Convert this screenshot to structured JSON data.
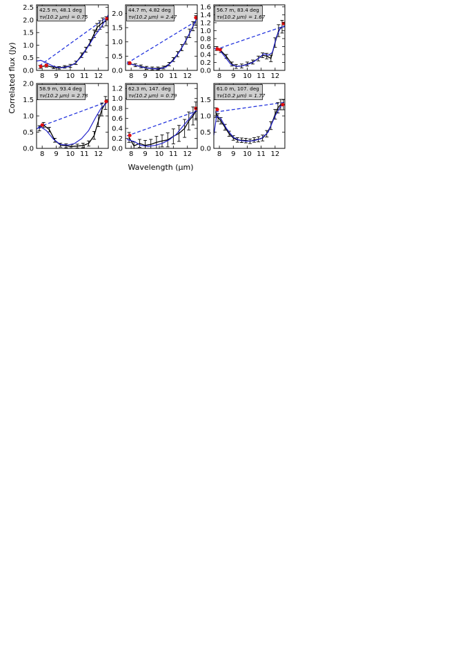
{
  "figure": {
    "ylabel": "Correlated flux (Jy)",
    "xlabel": "Wavelength (μm)",
    "colors": {
      "model": "#2222cc",
      "continuum": "#2233dd",
      "data": "#000000",
      "marker": "#e01010",
      "box": "#cfcfcf"
    }
  },
  "chart_data": [
    {
      "type": "line",
      "title": "42.5 m, 48.1 deg",
      "subtitle": "τν(10.2 μm) = 0.75",
      "xlim": [
        7.6,
        12.7
      ],
      "ylim": [
        0,
        2.6
      ],
      "xticks": [
        8,
        9,
        10,
        11,
        12
      ],
      "yticks": [
        0.0,
        0.5,
        1.0,
        1.5,
        2.0,
        2.5
      ],
      "ytick_labels": [
        "0.0",
        "0.5",
        "1.0",
        "1.5",
        "2.0",
        "2.5"
      ],
      "dashed_line": [
        [
          7.8,
          0.18
        ],
        [
          12.7,
          2.15
        ]
      ],
      "model_curve": [
        [
          7.6,
          0.37
        ],
        [
          7.9,
          0.4
        ],
        [
          8.3,
          0.3
        ],
        [
          8.8,
          0.16
        ],
        [
          9.3,
          0.1
        ],
        [
          9.8,
          0.14
        ],
        [
          10.3,
          0.26
        ],
        [
          10.8,
          0.55
        ],
        [
          11.3,
          0.98
        ],
        [
          11.8,
          1.42
        ],
        [
          12.2,
          1.72
        ],
        [
          12.7,
          2.2
        ]
      ],
      "data_points": [
        [
          7.85,
          0.14,
          0.06
        ],
        [
          8.3,
          0.19,
          0.06
        ],
        [
          8.8,
          0.12,
          0.05
        ],
        [
          9.2,
          0.1,
          0.05
        ],
        [
          9.6,
          0.14,
          0.05
        ],
        [
          10.0,
          0.18,
          0.06
        ],
        [
          10.4,
          0.3,
          0.07
        ],
        [
          10.8,
          0.6,
          0.09
        ],
        [
          11.1,
          0.82,
          0.1
        ],
        [
          11.4,
          1.1,
          0.12
        ],
        [
          11.7,
          1.45,
          0.15
        ],
        [
          11.9,
          1.7,
          0.16
        ],
        [
          12.1,
          1.8,
          0.17
        ],
        [
          12.3,
          1.9,
          0.18
        ],
        [
          12.55,
          1.95,
          0.18
        ]
      ],
      "red_points": [
        [
          7.9,
          0.16
        ],
        [
          8.3,
          0.2
        ],
        [
          12.6,
          2.05
        ]
      ]
    },
    {
      "type": "line",
      "title": "44.7 m, 4.82 deg",
      "subtitle": "τν(10.2 μm) = 2.47",
      "xlim": [
        7.6,
        12.7
      ],
      "ylim": [
        0,
        2.3
      ],
      "xticks": [
        8,
        9,
        10,
        11,
        12
      ],
      "yticks": [
        0.0,
        0.5,
        1.0,
        1.5,
        2.0
      ],
      "ytick_labels": [
        "0.0",
        "0.5",
        "1.0",
        "1.5",
        "2.0"
      ],
      "dashed_line": [
        [
          7.7,
          0.25
        ],
        [
          12.7,
          1.75
        ]
      ],
      "model_curve": [
        [
          7.7,
          0.25
        ],
        [
          8.3,
          0.18
        ],
        [
          8.9,
          0.1
        ],
        [
          9.5,
          0.06
        ],
        [
          10.0,
          0.05
        ],
        [
          10.5,
          0.12
        ],
        [
          11.0,
          0.35
        ],
        [
          11.5,
          0.7
        ],
        [
          12.0,
          1.15
        ],
        [
          12.4,
          1.55
        ],
        [
          12.7,
          1.85
        ]
      ],
      "data_points": [
        [
          7.85,
          0.25,
          0.05
        ],
        [
          8.3,
          0.18,
          0.05
        ],
        [
          8.7,
          0.14,
          0.05
        ],
        [
          9.1,
          0.09,
          0.05
        ],
        [
          9.5,
          0.07,
          0.05
        ],
        [
          9.9,
          0.07,
          0.05
        ],
        [
          10.3,
          0.1,
          0.05
        ],
        [
          10.7,
          0.22,
          0.06
        ],
        [
          11.0,
          0.38,
          0.07
        ],
        [
          11.3,
          0.57,
          0.09
        ],
        [
          11.6,
          0.8,
          0.11
        ],
        [
          11.9,
          1.05,
          0.13
        ],
        [
          12.15,
          1.3,
          0.15
        ],
        [
          12.4,
          1.55,
          0.16
        ],
        [
          12.6,
          1.75,
          0.17
        ]
      ],
      "red_points": [
        [
          7.9,
          0.26
        ],
        [
          12.6,
          1.85
        ]
      ]
    },
    {
      "type": "line",
      "title": "56.7 m, 83.4 deg",
      "subtitle": "τν(10.2 μm) = 1.67",
      "xlim": [
        7.6,
        12.7
      ],
      "ylim": [
        0,
        1.65
      ],
      "xticks": [
        8,
        9,
        10,
        11,
        12
      ],
      "yticks": [
        0.0,
        0.2,
        0.4,
        0.6,
        0.8,
        1.0,
        1.2,
        1.4,
        1.6
      ],
      "ytick_labels": [
        "0.0",
        "0.2",
        "0.4",
        "0.6",
        "0.8",
        "1.0",
        "1.2",
        "1.4",
        "1.6"
      ],
      "dashed_line": [
        [
          7.7,
          0.52
        ],
        [
          12.7,
          1.12
        ]
      ],
      "model_curve": [
        [
          7.6,
          0.56
        ],
        [
          8.0,
          0.52
        ],
        [
          8.4,
          0.34
        ],
        [
          8.8,
          0.16
        ],
        [
          9.2,
          0.1
        ],
        [
          9.6,
          0.11
        ],
        [
          10.0,
          0.15
        ],
        [
          10.4,
          0.2
        ],
        [
          10.8,
          0.3
        ],
        [
          11.2,
          0.42
        ],
        [
          11.5,
          0.38
        ],
        [
          11.8,
          0.45
        ],
        [
          12.1,
          0.85
        ],
        [
          12.4,
          1.08
        ],
        [
          12.7,
          1.1
        ]
      ],
      "data_points": [
        [
          7.8,
          0.55,
          0.05
        ],
        [
          8.1,
          0.5,
          0.05
        ],
        [
          8.5,
          0.35,
          0.05
        ],
        [
          8.9,
          0.16,
          0.05
        ],
        [
          9.2,
          0.1,
          0.05
        ],
        [
          9.6,
          0.11,
          0.05
        ],
        [
          10.0,
          0.16,
          0.05
        ],
        [
          10.4,
          0.21,
          0.05
        ],
        [
          10.8,
          0.3,
          0.06
        ],
        [
          11.1,
          0.38,
          0.06
        ],
        [
          11.4,
          0.36,
          0.07
        ],
        [
          11.7,
          0.3,
          0.08
        ],
        [
          12.0,
          0.7,
          0.12
        ],
        [
          12.25,
          1.0,
          0.15
        ],
        [
          12.5,
          1.1,
          0.16
        ]
      ],
      "red_points": [
        [
          7.85,
          0.54
        ],
        [
          8.05,
          0.52
        ],
        [
          12.6,
          1.18
        ]
      ]
    },
    {
      "type": "line",
      "title": "58.9 m, 93.4 deg",
      "subtitle": "τν(10.2 μm) = 2.78",
      "xlim": [
        7.6,
        12.7
      ],
      "ylim": [
        0,
        2.0
      ],
      "xticks": [
        8,
        9,
        10,
        11,
        12
      ],
      "yticks": [
        0.0,
        0.5,
        1.0,
        1.5,
        2.0
      ],
      "ytick_labels": [
        "0.0",
        "0.5",
        "1.0",
        "1.5",
        "2.0"
      ],
      "dashed_line": [
        [
          7.7,
          0.65
        ],
        [
          12.7,
          1.45
        ]
      ],
      "model_curve": [
        [
          7.6,
          0.6
        ],
        [
          7.9,
          0.66
        ],
        [
          8.3,
          0.55
        ],
        [
          8.8,
          0.28
        ],
        [
          9.3,
          0.12
        ],
        [
          9.8,
          0.1
        ],
        [
          10.3,
          0.15
        ],
        [
          10.8,
          0.3
        ],
        [
          11.3,
          0.55
        ],
        [
          11.8,
          0.95
        ],
        [
          12.2,
          1.25
        ],
        [
          12.7,
          1.45
        ]
      ],
      "data_points": [
        [
          7.8,
          0.62,
          0.08
        ],
        [
          8.1,
          0.72,
          0.08
        ],
        [
          8.5,
          0.58,
          0.07
        ],
        [
          8.9,
          0.25,
          0.06
        ],
        [
          9.3,
          0.1,
          0.06
        ],
        [
          9.7,
          0.08,
          0.06
        ],
        [
          10.1,
          0.06,
          0.06
        ],
        [
          10.5,
          0.07,
          0.06
        ],
        [
          10.9,
          0.09,
          0.07
        ],
        [
          11.3,
          0.15,
          0.08
        ],
        [
          11.7,
          0.4,
          0.12
        ],
        [
          12.0,
          0.85,
          0.18
        ],
        [
          12.25,
          1.2,
          0.2
        ],
        [
          12.5,
          1.4,
          0.2
        ]
      ],
      "red_points": [
        [
          8.0,
          0.72
        ],
        [
          12.55,
          1.45
        ]
      ]
    },
    {
      "type": "line",
      "title": "62.3 m, 147. deg",
      "subtitle": "τν(10.2 μm) = 0.79",
      "xlim": [
        7.6,
        12.7
      ],
      "ylim": [
        0,
        1.3
      ],
      "xticks": [
        8,
        9,
        10,
        11,
        12
      ],
      "yticks": [
        0.0,
        0.2,
        0.4,
        0.6,
        0.8,
        1.0,
        1.2
      ],
      "ytick_labels": [
        "0.0",
        "0.2",
        "0.4",
        "0.6",
        "0.8",
        "1.0",
        "1.2"
      ],
      "dashed_line": [
        [
          7.7,
          0.25
        ],
        [
          12.7,
          0.75
        ]
      ],
      "model_curve": [
        [
          7.7,
          0.18
        ],
        [
          8.2,
          0.14
        ],
        [
          8.7,
          0.06
        ],
        [
          9.2,
          0.04
        ],
        [
          9.7,
          0.06
        ],
        [
          10.2,
          0.1
        ],
        [
          10.7,
          0.17
        ],
        [
          11.2,
          0.28
        ],
        [
          11.7,
          0.45
        ],
        [
          12.2,
          0.62
        ],
        [
          12.7,
          0.8
        ]
      ],
      "data_points": [
        [
          7.85,
          0.22,
          0.1
        ],
        [
          8.2,
          0.05,
          0.08
        ],
        [
          8.6,
          0.1,
          0.08
        ],
        [
          9.0,
          0.06,
          0.1
        ],
        [
          9.4,
          0.08,
          0.1
        ],
        [
          9.8,
          0.12,
          0.12
        ],
        [
          10.2,
          0.15,
          0.12
        ],
        [
          10.6,
          0.17,
          0.14
        ],
        [
          11.0,
          0.24,
          0.15
        ],
        [
          11.4,
          0.3,
          0.16
        ],
        [
          11.8,
          0.4,
          0.18
        ],
        [
          12.1,
          0.55,
          0.18
        ],
        [
          12.4,
          0.65,
          0.18
        ],
        [
          12.6,
          0.75,
          0.18
        ]
      ],
      "red_points": [
        [
          7.9,
          0.26
        ],
        [
          12.6,
          0.8
        ]
      ]
    },
    {
      "type": "line",
      "title": "61.0 m, 107. deg",
      "subtitle": "τν(10.2 μm) = 1.77",
      "xlim": [
        7.6,
        12.7
      ],
      "ylim": [
        0,
        2.0
      ],
      "xticks": [
        8,
        9,
        10,
        11,
        12
      ],
      "yticks": [
        0.0,
        0.5,
        1.0,
        1.5
      ],
      "ytick_labels": [
        "0.0",
        "0.5",
        "1.0",
        "1.5"
      ],
      "dashed_line": [
        [
          7.7,
          1.12
        ],
        [
          12.7,
          1.42
        ]
      ],
      "model_curve": [
        [
          7.6,
          0.4
        ],
        [
          7.8,
          1.0
        ],
        [
          8.1,
          0.92
        ],
        [
          8.5,
          0.62
        ],
        [
          9.0,
          0.34
        ],
        [
          9.5,
          0.24
        ],
        [
          10.0,
          0.22
        ],
        [
          10.5,
          0.24
        ],
        [
          11.0,
          0.3
        ],
        [
          11.5,
          0.5
        ],
        [
          12.0,
          1.0
        ],
        [
          12.4,
          1.3
        ],
        [
          12.7,
          1.35
        ]
      ],
      "data_points": [
        [
          7.75,
          1.1,
          0.15
        ],
        [
          7.9,
          0.95,
          0.12
        ],
        [
          8.1,
          0.85,
          0.1
        ],
        [
          8.4,
          0.65,
          0.09
        ],
        [
          8.7,
          0.45,
          0.08
        ],
        [
          9.0,
          0.32,
          0.07
        ],
        [
          9.3,
          0.26,
          0.07
        ],
        [
          9.6,
          0.25,
          0.07
        ],
        [
          9.9,
          0.24,
          0.07
        ],
        [
          10.2,
          0.22,
          0.07
        ],
        [
          10.5,
          0.26,
          0.07
        ],
        [
          10.8,
          0.28,
          0.08
        ],
        [
          11.1,
          0.32,
          0.09
        ],
        [
          11.4,
          0.45,
          0.1
        ],
        [
          11.7,
          0.7,
          0.12
        ],
        [
          12.0,
          1.05,
          0.15
        ],
        [
          12.2,
          1.25,
          0.16
        ],
        [
          12.4,
          1.35,
          0.16
        ],
        [
          12.6,
          1.35,
          0.16
        ]
      ],
      "red_points": [
        [
          7.85,
          1.2
        ],
        [
          12.55,
          1.35
        ]
      ]
    }
  ]
}
